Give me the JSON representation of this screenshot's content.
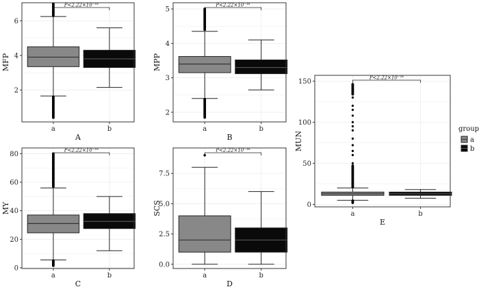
{
  "colors": {
    "a": "#888888",
    "b": "#0a0a0a",
    "median_a": "#333333",
    "median_b": "#555555",
    "grid": "#ececec",
    "frame": "#333333"
  },
  "legend": {
    "title": "group",
    "items": [
      {
        "key": "a",
        "label": "a"
      },
      {
        "key": "b",
        "label": "b"
      }
    ]
  },
  "chart_data": [
    {
      "type": "box",
      "panel": "A",
      "ylabel": "MFP",
      "categories": [
        "a",
        "b"
      ],
      "ylim": [
        0.15,
        7.05
      ],
      "yticks": [
        2,
        4,
        6
      ],
      "yticklabels": [
        "2",
        "4",
        "6"
      ],
      "pvalue": "P<2.22×10⁻¹⁶",
      "series": [
        {
          "name": "a",
          "min": 1.65,
          "q1": 3.35,
          "median": 3.9,
          "q3": 4.5,
          "max": 6.25,
          "outliers_high": [
            6.3,
            7.0
          ],
          "outliers_low": [
            0.4,
            1.6
          ]
        },
        {
          "name": "b",
          "min": 2.15,
          "q1": 3.3,
          "median": 3.8,
          "q3": 4.3,
          "max": 5.6,
          "outliers_high": [],
          "outliers_low": []
        }
      ]
    },
    {
      "type": "box",
      "panel": "B",
      "ylabel": "MPP",
      "categories": [
        "a",
        "b"
      ],
      "ylim": [
        1.72,
        5.18
      ],
      "yticks": [
        2,
        3,
        4,
        5
      ],
      "yticklabels": [
        "2",
        "3",
        "4",
        "5"
      ],
      "pvalue": "P<2.22×10⁻¹⁶",
      "series": [
        {
          "name": "a",
          "min": 2.4,
          "q1": 3.15,
          "median": 3.4,
          "q3": 3.62,
          "max": 4.35,
          "outliers_high": [
            4.4,
            5.0
          ],
          "outliers_low": [
            1.85,
            2.38
          ]
        },
        {
          "name": "b",
          "min": 2.65,
          "q1": 3.12,
          "median": 3.3,
          "q3": 3.52,
          "max": 4.1,
          "outliers_high": [],
          "outliers_low": []
        }
      ]
    },
    {
      "type": "box",
      "panel": "C",
      "ylabel": "MY",
      "categories": [
        "a",
        "b"
      ],
      "ylim": [
        -0.5,
        84
      ],
      "yticks": [
        0,
        20,
        40,
        60,
        80
      ],
      "yticklabels": [
        "0",
        "20",
        "40",
        "60",
        "80"
      ],
      "pvalue": "P<2.22×10⁻¹⁶",
      "series": [
        {
          "name": "a",
          "min": 5.5,
          "q1": 24.5,
          "median": 31,
          "q3": 37,
          "max": 56,
          "outliers_high": [
            57,
            80
          ],
          "outliers_low": [
            1.5,
            5
          ]
        },
        {
          "name": "b",
          "min": 12,
          "q1": 27.5,
          "median": 32.5,
          "q3": 38,
          "max": 50,
          "outliers_high": [],
          "outliers_low": []
        }
      ]
    },
    {
      "type": "box",
      "panel": "D",
      "ylabel": "SCS",
      "categories": [
        "a",
        "b"
      ],
      "ylim": [
        -0.35,
        9.6
      ],
      "yticks": [
        0,
        2.5,
        5,
        7.5
      ],
      "yticklabels": [
        "0.0",
        "2.5",
        "5.0",
        "7.5"
      ],
      "pvalue": "P<2.22×10⁻¹⁶",
      "series": [
        {
          "name": "a",
          "min": 0,
          "q1": 1,
          "median": 2,
          "q3": 4,
          "max": 8,
          "outliers_high": [
            9
          ],
          "outliers_low": []
        },
        {
          "name": "b",
          "min": 0,
          "q1": 1,
          "median": 2,
          "q3": 3,
          "max": 6,
          "outliers_high": [],
          "outliers_low": []
        }
      ]
    },
    {
      "type": "box",
      "panel": "E",
      "ylabel": "MUN",
      "categories": [
        "a",
        "b"
      ],
      "ylim": [
        -3,
        157
      ],
      "yticks": [
        0,
        50,
        100,
        150
      ],
      "yticklabels": [
        "0",
        "50",
        "100",
        "150"
      ],
      "pvalue": "P<2.22×10⁻¹⁶",
      "series": [
        {
          "name": "a",
          "min": 5,
          "q1": 11,
          "median": 13,
          "q3": 15,
          "max": 20,
          "outliers_high": [
            21,
            50,
            60,
            65,
            72,
            80,
            90,
            95,
            100,
            108,
            115,
            120,
            130,
            136,
            141,
            146
          ],
          "outliers_low": [
            2,
            4.5
          ]
        },
        {
          "name": "b",
          "min": 7.5,
          "q1": 11,
          "median": 13,
          "q3": 15,
          "max": 18,
          "outliers_high": [],
          "outliers_low": []
        }
      ]
    }
  ]
}
